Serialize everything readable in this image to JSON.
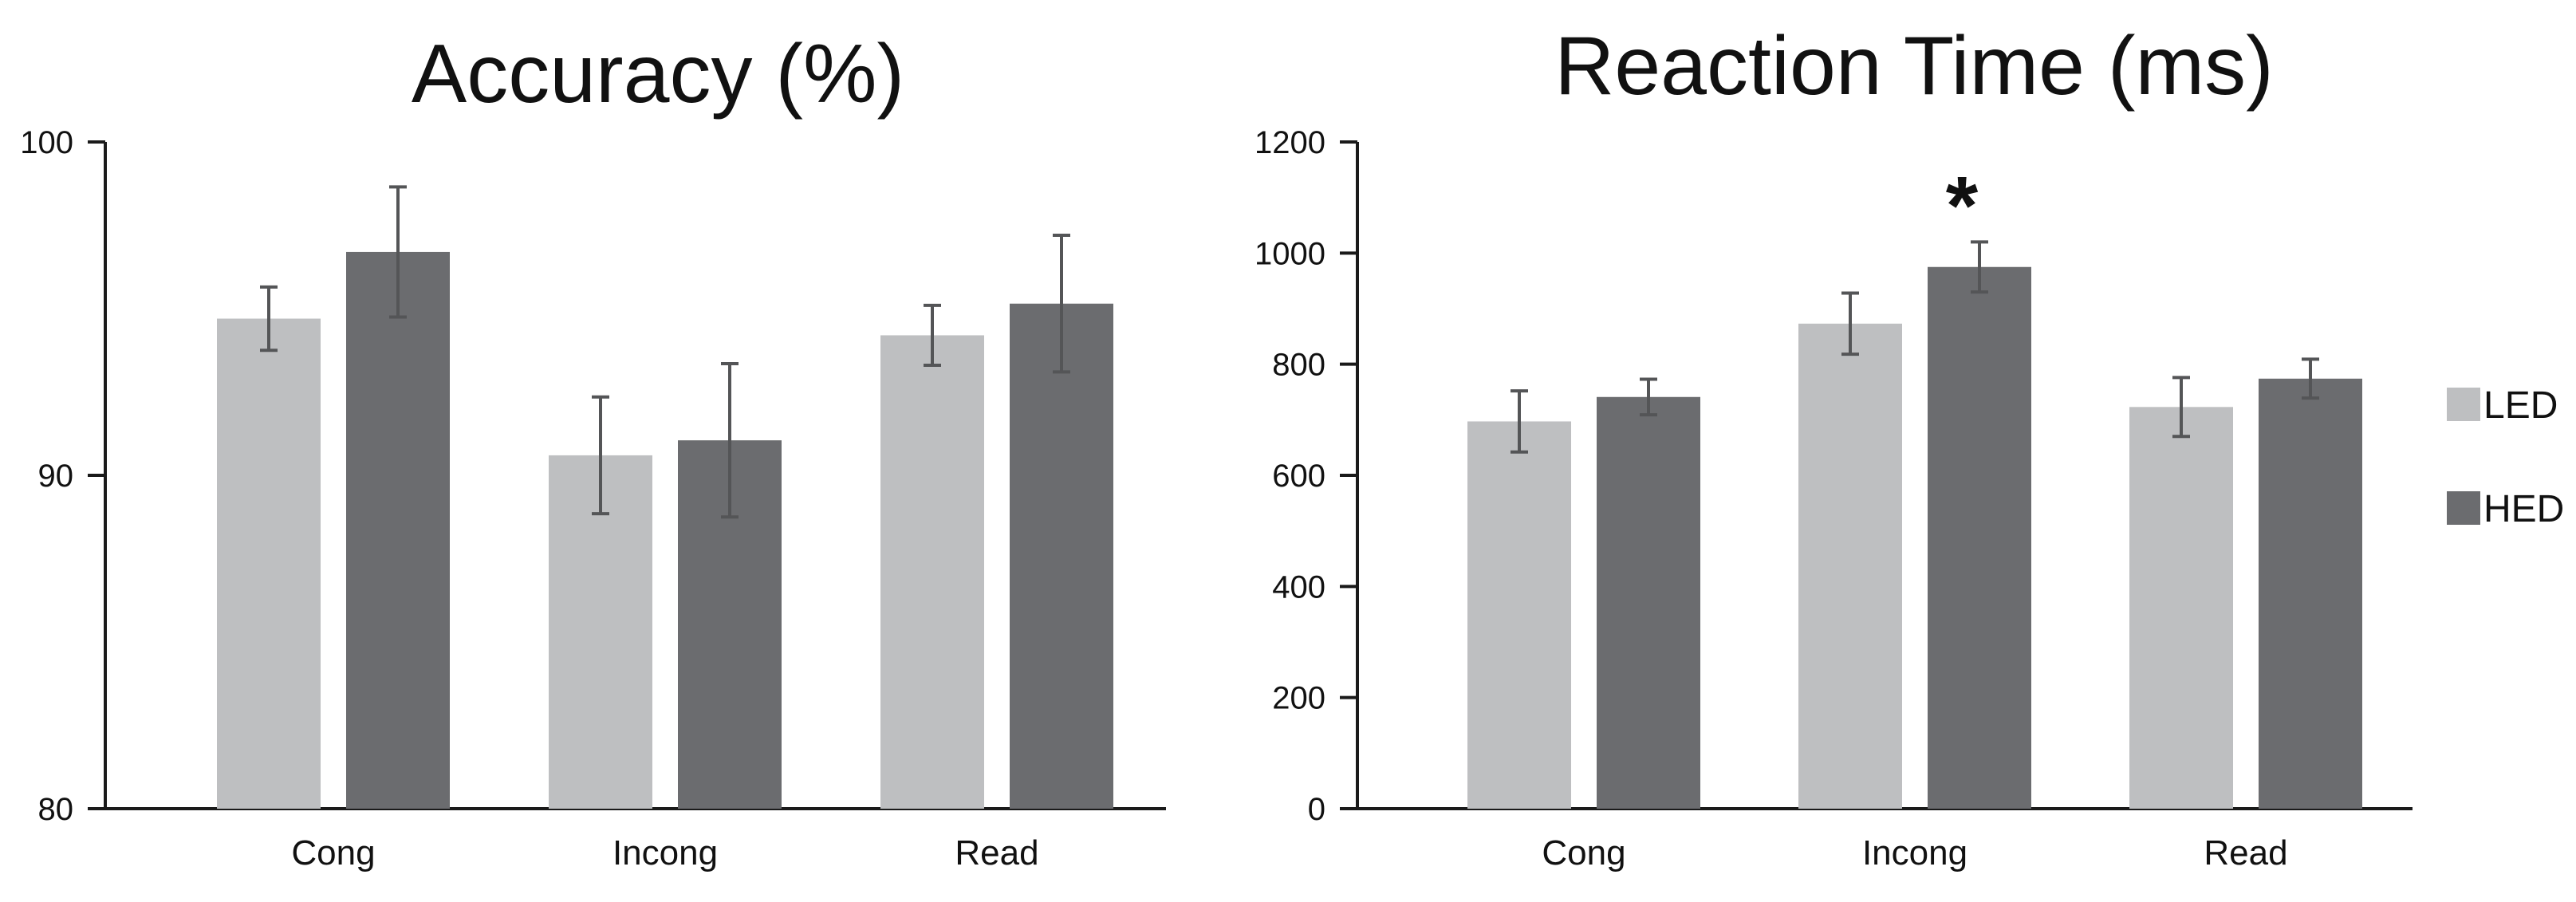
{
  "chart_data": [
    {
      "type": "bar",
      "title": "Accuracy (%)",
      "xlabel": "",
      "ylabel": "",
      "categories": [
        "Cong",
        "Incong",
        "Read"
      ],
      "ylim": [
        80,
        100
      ],
      "yticks": [
        80,
        90,
        100
      ],
      "series": [
        {
          "name": "LED",
          "color": "#bebfc1",
          "values": [
            94.7,
            90.6,
            94.2
          ],
          "errors": [
            0.95,
            1.75,
            0.9
          ]
        },
        {
          "name": "HED",
          "color": "#6b6c6f",
          "values": [
            96.7,
            91.05,
            95.15
          ],
          "errors": [
            1.95,
            2.3,
            2.05
          ]
        }
      ],
      "annotations": []
    },
    {
      "type": "bar",
      "title": "Reaction Time (ms)",
      "xlabel": "",
      "ylabel": "",
      "categories": [
        "Cong",
        "Incong",
        "Read"
      ],
      "ylim": [
        0,
        1200
      ],
      "yticks": [
        0,
        200,
        400,
        600,
        800,
        1000,
        1200
      ],
      "series": [
        {
          "name": "LED",
          "color": "#bebfc1",
          "values": [
            697,
            873,
            723
          ],
          "errors": [
            55,
            55,
            53
          ]
        },
        {
          "name": "HED",
          "color": "#6b6c6f",
          "values": [
            741,
            975,
            774
          ],
          "errors": [
            32,
            45,
            35
          ]
        }
      ],
      "annotations": [
        {
          "text": "*",
          "category": "Incong",
          "series": "HED"
        }
      ]
    }
  ],
  "legend": {
    "placement": "right",
    "items": [
      {
        "label": "LED",
        "color": "#bebfc1"
      },
      {
        "label": "HED",
        "color": "#6b6c6f"
      }
    ]
  }
}
